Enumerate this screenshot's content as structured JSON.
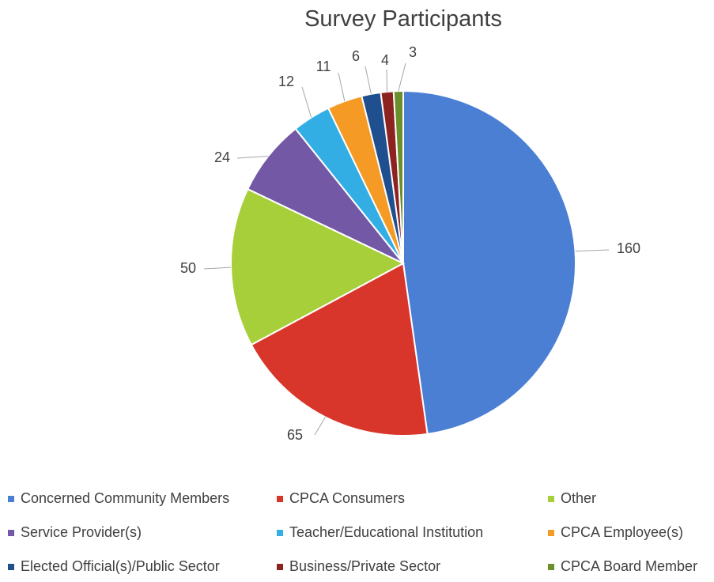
{
  "chart_data": {
    "type": "pie",
    "title": "Survey Participants",
    "slices": [
      {
        "label": "Concerned Community Members",
        "value": 160,
        "color": "#4a7fd4"
      },
      {
        "label": "CPCA Consumers",
        "value": 65,
        "color": "#d9362b"
      },
      {
        "label": "Other",
        "value": 50,
        "color": "#a7cf3a"
      },
      {
        "label": "Service Provider(s)",
        "value": 24,
        "color": "#7358a6"
      },
      {
        "label": "Teacher/Educational Institution",
        "value": 12,
        "color": "#33aee4"
      },
      {
        "label": "CPCA Employee(s)",
        "value": 11,
        "color": "#f49a25"
      },
      {
        "label": "Elected Official(s)/Public Sector",
        "value": 6,
        "color": "#1f4f8f"
      },
      {
        "label": "Business/Private Sector",
        "value": 4,
        "color": "#8c2320"
      },
      {
        "label": "CPCA Board Member",
        "value": 3,
        "color": "#6b8f2a"
      }
    ],
    "legend_position": "bottom"
  }
}
